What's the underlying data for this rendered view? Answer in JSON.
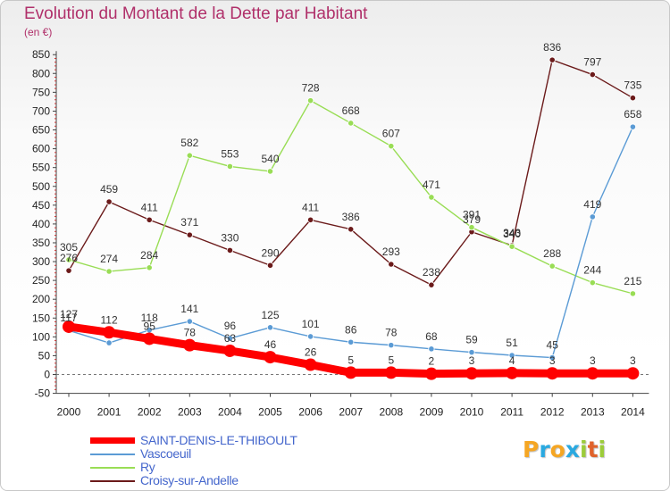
{
  "title": "Evolution du Montant de la Dette par Habitant",
  "unit_label": "(en €)",
  "chart_data": {
    "type": "line",
    "x": [
      "2000",
      "2001",
      "2002",
      "2003",
      "2004",
      "2005",
      "2006",
      "2007",
      "2008",
      "2009",
      "2010",
      "2011",
      "2012",
      "2013",
      "2014"
    ],
    "y_ticks": [
      850,
      800,
      750,
      700,
      650,
      600,
      550,
      500,
      450,
      400,
      350,
      300,
      250,
      200,
      150,
      100,
      50,
      0,
      -50
    ],
    "ylim": [
      -50,
      850
    ],
    "grid": false,
    "legend_position": "bottom-left",
    "series": [
      {
        "name": "SAINT-DENIS-LE-THIBOULT",
        "color": "#ff0000",
        "values": [
          127,
          112,
          95,
          78,
          63,
          46,
          26,
          5,
          5,
          2,
          3,
          4,
          3,
          3,
          3
        ],
        "labels": [
          "127",
          "112",
          "95",
          "78",
          "63",
          "46",
          "26",
          "5",
          "5",
          "2",
          "3",
          "4",
          "3",
          "3",
          "3"
        ]
      },
      {
        "name": "Vascoeuil",
        "color": "#5b9bd5",
        "values": [
          117,
          84,
          118,
          141,
          96,
          125,
          101,
          86,
          78,
          68,
          59,
          51,
          45,
          419,
          658
        ],
        "labels": [
          "117",
          "",
          "118",
          "141",
          "96",
          "125",
          "101",
          "86",
          "78",
          "68",
          "59",
          "51",
          "45",
          "419",
          "658"
        ]
      },
      {
        "name": "Ry",
        "color": "#99dd55",
        "values": [
          305,
          274,
          284,
          582,
          553,
          540,
          728,
          668,
          607,
          471,
          391,
          340,
          288,
          244,
          215
        ],
        "labels": [
          "305",
          "274",
          "284",
          "582",
          "553",
          "540",
          "728",
          "668",
          "607",
          "471",
          "391",
          "340",
          "288",
          "244",
          "215"
        ]
      },
      {
        "name": "Croisy-sur-Andelle",
        "color": "#6b1a1a",
        "values": [
          276,
          459,
          411,
          371,
          330,
          290,
          411,
          386,
          293,
          238,
          379,
          343,
          836,
          797,
          735
        ],
        "labels": [
          "276",
          "459",
          "411",
          "371",
          "330",
          "290",
          "411",
          "386",
          "293",
          "238",
          "379",
          "343",
          "836",
          "797",
          "735"
        ]
      }
    ]
  },
  "logo": {
    "letters": [
      "P",
      "r",
      "o",
      "x",
      "i",
      "t",
      "i"
    ],
    "colors": [
      "#f5a623",
      "#2aa9e0",
      "#f5a623",
      "#2aa9e0",
      "#9ccc3a",
      "#e0622a",
      "#9ccc3a"
    ]
  }
}
